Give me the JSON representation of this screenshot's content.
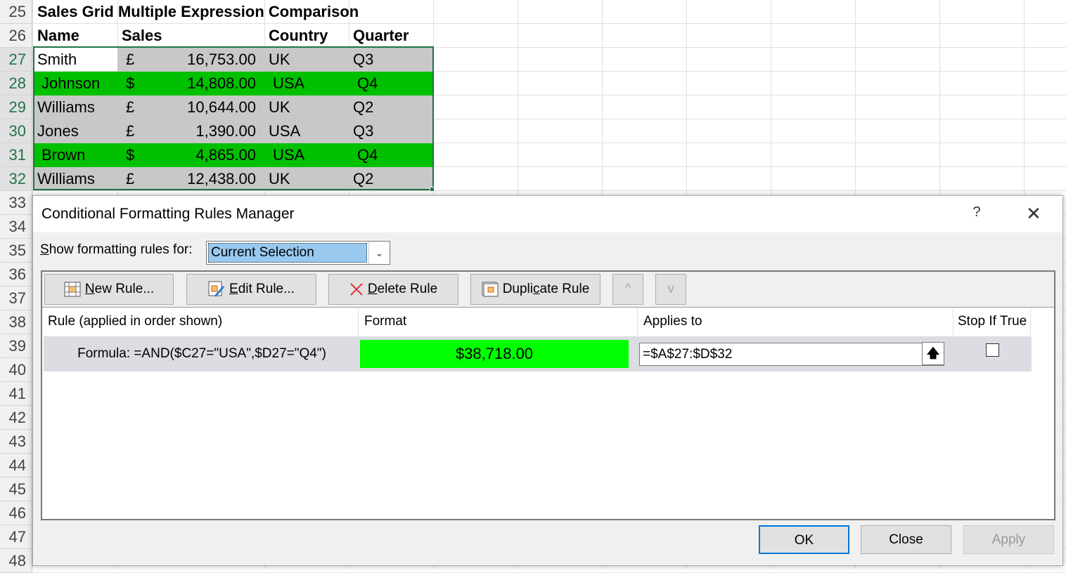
{
  "sheet": {
    "rows": [
      "25",
      "26",
      "27",
      "28",
      "29",
      "30",
      "31",
      "32",
      "33",
      "34",
      "35",
      "36",
      "37",
      "38",
      "39",
      "40",
      "41",
      "42",
      "43",
      "44",
      "45",
      "46",
      "47",
      "48"
    ],
    "title": "Sales Grid Multiple Expression Comparison",
    "headers": [
      "Name",
      "Sales",
      "Country",
      "Quarter"
    ],
    "data": [
      {
        "name": "Smith",
        "cur": "£",
        "sales": "16,753.00",
        "country": "UK",
        "quarter": "Q3",
        "highlight": false
      },
      {
        "name": "Johnson",
        "cur": "$",
        "sales": "14,808.00",
        "country": "USA",
        "quarter": "Q4",
        "highlight": true
      },
      {
        "name": "Williams",
        "cur": "£",
        "sales": "10,644.00",
        "country": "UK",
        "quarter": "Q2",
        "highlight": false
      },
      {
        "name": "Jones",
        "cur": "£",
        "sales": "1,390.00",
        "country": "USA",
        "quarter": "Q3",
        "highlight": false
      },
      {
        "name": "Brown",
        "cur": "$",
        "sales": "4,865.00",
        "country": "USA",
        "quarter": "Q4",
        "highlight": true
      },
      {
        "name": "Williams",
        "cur": "£",
        "sales": "12,438.00",
        "country": "UK",
        "quarter": "Q2",
        "highlight": false
      }
    ],
    "colors": {
      "highlight": "#00c000",
      "fill": "#c8c8c8",
      "selection": "#217346"
    }
  },
  "dialog": {
    "title": "Conditional Formatting Rules Manager",
    "help": "?",
    "close": "✕",
    "show_label_key": "S",
    "show_label_rest": "how formatting rules for:",
    "scope": "Current Selection",
    "buttons": {
      "new_key": "N",
      "new_rest": "ew Rule...",
      "edit_key": "E",
      "edit_rest": "dit Rule...",
      "delete_key": "D",
      "delete_rest": "elete Rule",
      "dup_pre": "Dupli",
      "dup_key": "c",
      "dup_rest": "ate Rule",
      "up": "^",
      "down": "v"
    },
    "columns": [
      "Rule (applied in order shown)",
      "Format",
      "Applies to",
      "Stop If True"
    ],
    "rule": {
      "text": "Formula: =AND($C27=\"USA\",$D27=\"Q4\")",
      "preview": "$38,718.00",
      "preview_color": "#00ff00",
      "applies_to": "=$A$27:$D$32",
      "stop_if_true": false
    },
    "footer": {
      "ok": "OK",
      "close": "Close",
      "apply": "Apply"
    }
  }
}
